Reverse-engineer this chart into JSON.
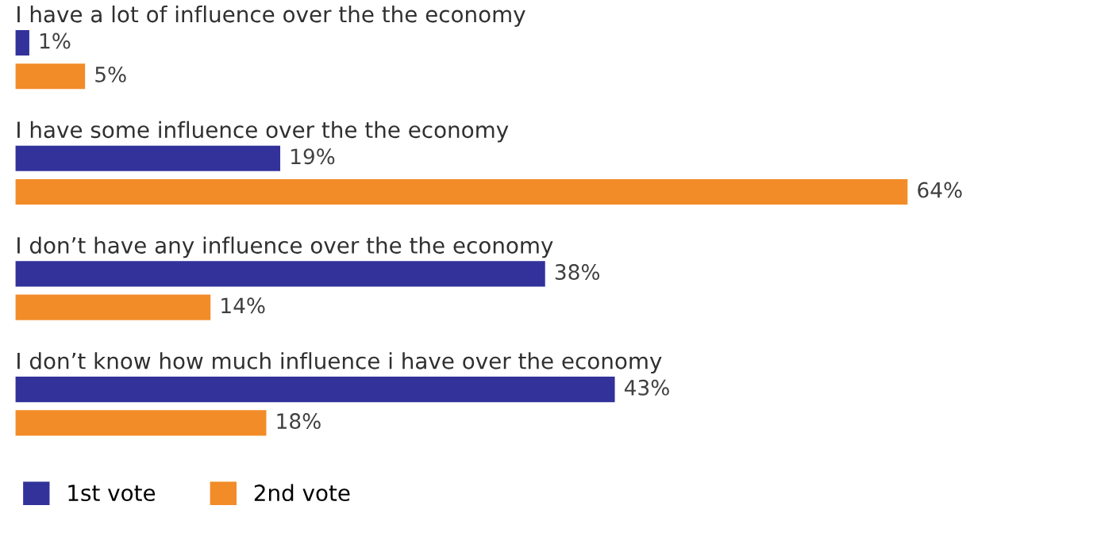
{
  "chart_data": {
    "type": "bar",
    "orientation": "horizontal",
    "categories": [
      "I have a lot of influence over the the economy",
      "I have some influence over the the economy",
      "I don’t have any influence over the the economy",
      "I don’t know how much influence i have over the economy"
    ],
    "series": [
      {
        "name": "1st vote",
        "color": "#32329a",
        "values": [
          1,
          19,
          38,
          43
        ],
        "value_labels": [
          "1%",
          "19%",
          "38%",
          "43%"
        ]
      },
      {
        "name": "2nd vote",
        "color": "#f28c28",
        "values": [
          5,
          64,
          14,
          18
        ],
        "value_labels": [
          "5%",
          "64%",
          "14%",
          "18%"
        ]
      }
    ],
    "legend": "bottom left"
  }
}
